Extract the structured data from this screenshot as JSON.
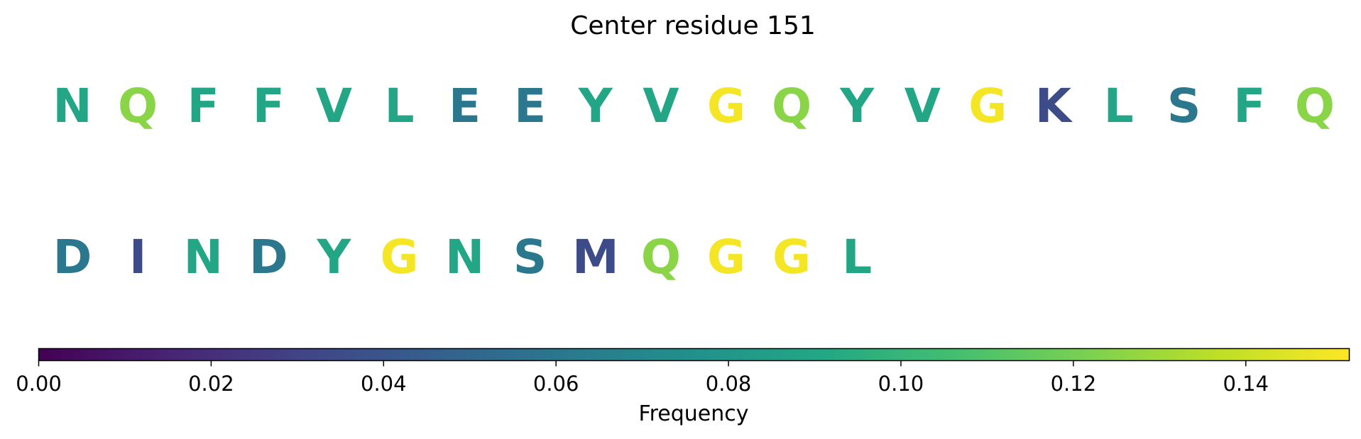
{
  "chart_data": {
    "type": "heatmap",
    "title": "Center residue 151",
    "rows": [
      [
        "N",
        "Q",
        "F",
        "F",
        "V",
        "L",
        "E",
        "E",
        "Y",
        "V",
        "G",
        "Q",
        "Y",
        "V",
        "G",
        "K",
        "L",
        "S",
        "F",
        "Q"
      ],
      [
        "D",
        "I",
        "N",
        "D",
        "Y",
        "G",
        "N",
        "S",
        "M",
        "Q",
        "G",
        "G",
        "L"
      ]
    ],
    "frequencies": [
      [
        0.09,
        0.125,
        0.09,
        0.09,
        0.09,
        0.09,
        0.06,
        0.06,
        0.09,
        0.09,
        0.15,
        0.125,
        0.09,
        0.09,
        0.15,
        0.035,
        0.09,
        0.06,
        0.09,
        0.125
      ],
      [
        0.06,
        0.035,
        0.09,
        0.06,
        0.09,
        0.15,
        0.09,
        0.06,
        0.035,
        0.125,
        0.15,
        0.15,
        0.09
      ]
    ],
    "colormap": "viridis",
    "colorbar": {
      "label": "Frequency",
      "range": [
        0.0,
        0.152
      ],
      "ticks": [
        0.0,
        0.02,
        0.04,
        0.06,
        0.08,
        0.1,
        0.12,
        0.14
      ],
      "tick_labels": [
        "0.00",
        "0.02",
        "0.04",
        "0.06",
        "0.08",
        "0.10",
        "0.12",
        "0.14"
      ],
      "orientation": "horizontal",
      "placement": "bottom"
    }
  }
}
